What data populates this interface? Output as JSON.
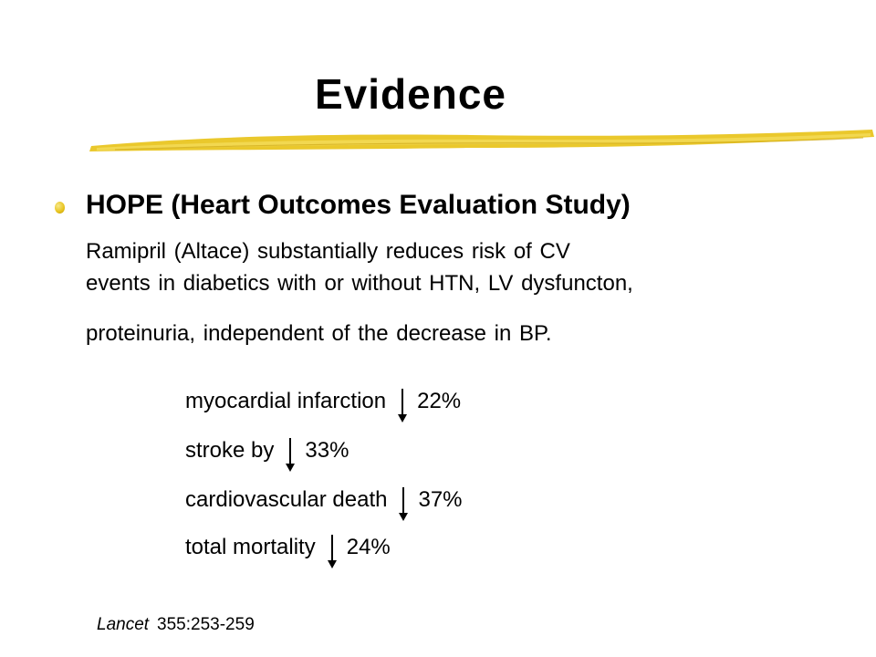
{
  "slide": {
    "title": "Evidence",
    "accent_color": "#e8c31a",
    "bullet": {
      "heading": "HOPE (Heart Outcomes Evaluation Study)",
      "body_lines": [
        "Ramipril  (Altace) substantially reduces risk of CV",
        "events in diabetics with or without HTN, LV dysfuncton,",
        "proteinuria, independent of the decrease in BP."
      ]
    },
    "stats": [
      {
        "label": "myocardial infarction",
        "arrow": "down-arrow-icon",
        "value": "22%"
      },
      {
        "label": "stroke by",
        "arrow": "down-arrow-icon",
        "value": "33%"
      },
      {
        "label": "cardiovascular death",
        "arrow": "down-arrow-icon",
        "value": "37%"
      },
      {
        "label": "total mortality",
        "arrow": "down-arrow-icon",
        "value": "24%"
      }
    ],
    "citation": {
      "journal": "Lancet",
      "reference": "355:253-259"
    }
  }
}
